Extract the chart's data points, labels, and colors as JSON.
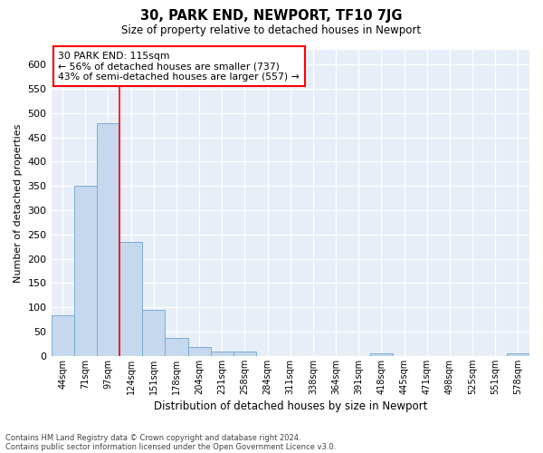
{
  "title": "30, PARK END, NEWPORT, TF10 7JG",
  "subtitle": "Size of property relative to detached houses in Newport",
  "xlabel": "Distribution of detached houses by size in Newport",
  "ylabel": "Number of detached properties",
  "bar_color": "#c5d8ed",
  "bar_edge_color": "#7aadd4",
  "bg_color": "#e8eef8",
  "grid_color": "#ffffff",
  "categories": [
    "44sqm",
    "71sqm",
    "97sqm",
    "124sqm",
    "151sqm",
    "178sqm",
    "204sqm",
    "231sqm",
    "258sqm",
    "284sqm",
    "311sqm",
    "338sqm",
    "364sqm",
    "391sqm",
    "418sqm",
    "445sqm",
    "471sqm",
    "498sqm",
    "525sqm",
    "551sqm",
    "578sqm"
  ],
  "values": [
    83,
    350,
    478,
    235,
    95,
    37,
    18,
    8,
    8,
    0,
    0,
    0,
    0,
    0,
    5,
    0,
    0,
    0,
    0,
    0,
    5
  ],
  "ylim": [
    0,
    630
  ],
  "yticks": [
    0,
    50,
    100,
    150,
    200,
    250,
    300,
    350,
    400,
    450,
    500,
    550,
    600
  ],
  "red_line_x": 2.5,
  "annotation_title": "30 PARK END: 115sqm",
  "annotation_line1": "← 56% of detached houses are smaller (737)",
  "annotation_line2": "43% of semi-detached houses are larger (557) →",
  "footnote1": "Contains HM Land Registry data © Crown copyright and database right 2024.",
  "footnote2": "Contains public sector information licensed under the Open Government Licence v3.0."
}
